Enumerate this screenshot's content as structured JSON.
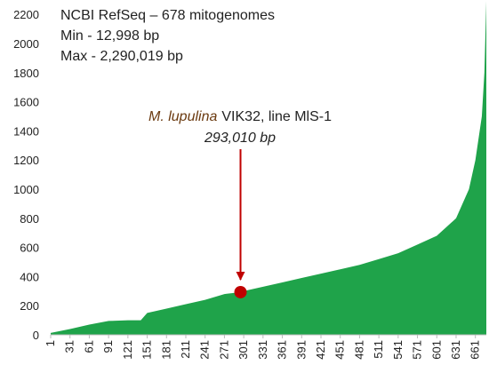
{
  "chart_data": {
    "type": "area",
    "annotations": [
      "NCBI RefSeq – 678 mitogenomes",
      "Min - 12,998 bp",
      "Max - 2,290,019 bp"
    ],
    "annotation_color": "#2e9a4a",
    "highlight": {
      "name_italic": "M. lupulina",
      "name_rest": "VIK32, line MlS-1",
      "name_color": "#6b3a10",
      "x": 296,
      "value": 293.01,
      "label": "293,010 bp",
      "color": "#c00000"
    },
    "x": [
      1,
      31,
      61,
      91,
      121,
      141,
      151,
      181,
      211,
      241,
      271,
      296,
      301,
      331,
      361,
      391,
      421,
      451,
      481,
      511,
      541,
      571,
      601,
      631,
      651,
      661,
      671,
      675,
      678
    ],
    "series": [
      {
        "color": "#1fa34a",
        "values": [
          12.998,
          40,
          70,
          95,
          100,
          100,
          150,
          180,
          210,
          240,
          280,
          293.01,
          300,
          330,
          360,
          390,
          420,
          450,
          480,
          520,
          560,
          620,
          680,
          800,
          1000,
          1200,
          1500,
          1800,
          2290.019
        ]
      }
    ],
    "xlim": [
      1,
      678
    ],
    "xticks": [
      1,
      31,
      61,
      91,
      121,
      151,
      181,
      211,
      241,
      271,
      301,
      331,
      361,
      391,
      421,
      451,
      481,
      511,
      541,
      571,
      601,
      631,
      661
    ],
    "ylim": [
      0,
      2250
    ],
    "yticks": [
      0,
      200,
      400,
      600,
      800,
      1000,
      1200,
      1400,
      1600,
      1800,
      2000,
      2200
    ]
  }
}
